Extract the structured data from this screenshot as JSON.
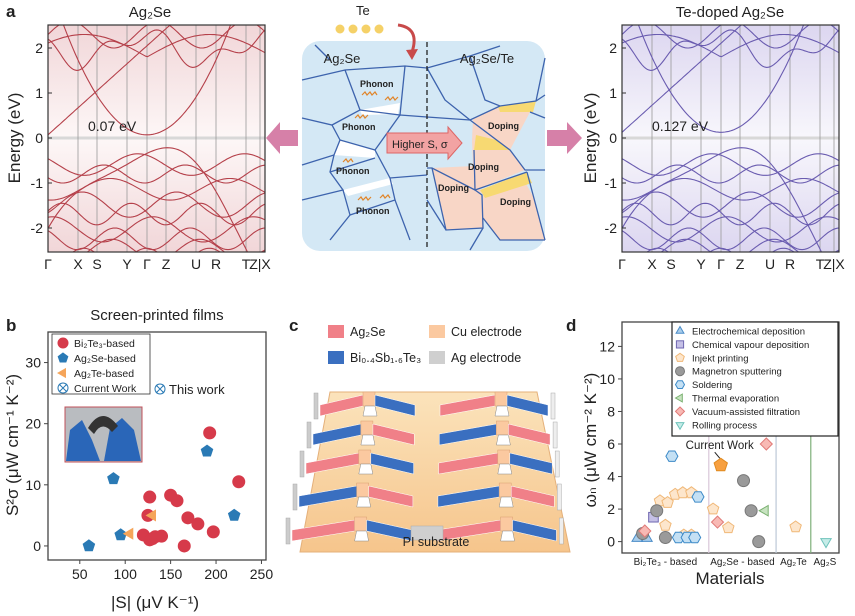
{
  "panel_labels": {
    "a": "a",
    "b": "b",
    "c": "c",
    "d": "d"
  },
  "panel_a": {
    "left_title": "Ag₂Se",
    "right_title": "Te-doped Ag₂Se",
    "ylabel": "Energy (eV)",
    "yticks": [
      "2",
      "1",
      "0",
      "-1",
      "-2"
    ],
    "kpoints": [
      "Γ",
      "X",
      "S",
      "Y",
      "Γ",
      "Z",
      "U",
      "R",
      "T",
      "Z|X"
    ],
    "left_gap": "0.07 eV",
    "right_gap": "0.127 eV",
    "left_color": "#b5404a",
    "right_color": "#6a5cb0",
    "schematic": {
      "te_label": "Te",
      "left_region": "Ag₂Se",
      "right_region": "Ag₂Se/Te",
      "phonon_labels": [
        "Phonon",
        "Phonon",
        "Phonon",
        "Phonon"
      ],
      "doping_labels": [
        "Doping",
        "Doping",
        "Doping",
        "Doping"
      ],
      "arrow_label": "Higher S, σ"
    }
  },
  "panel_c": {
    "legend": [
      "Ag₂Se",
      "Cu electrode",
      "Bi₀.₄Sb₁.₆Te₃",
      "Ag electrode"
    ],
    "legend_colors": [
      "#f08088",
      "#fbc9a0",
      "#3a6fc0",
      "#cfcfcf"
    ],
    "substrate_label": "PI substrate"
  },
  "chart_data": [
    {
      "id": "b",
      "type": "scatter",
      "title": "Screen-printed films",
      "xlabel": "|S| (μV K⁻¹)",
      "ylabel": "S²σ (μW cm⁻¹ K⁻²)",
      "xlim": [
        15,
        255
      ],
      "ylim": [
        -2.3,
        35
      ],
      "xticks": [
        50,
        100,
        150,
        200,
        250
      ],
      "yticks": [
        0,
        10,
        20,
        30
      ],
      "legend": [
        "Bi₂Te₃-based",
        "Ag₂Se-based",
        "Ag₂Te-based",
        "Current Work"
      ],
      "legend_placement": "top-left",
      "annotation": "This work",
      "series": [
        {
          "name": "Bi₂Te₃-based",
          "color": "#d63a4a",
          "marker": "circle",
          "points": [
            [
              127,
              8
            ],
            [
              125,
              5
            ],
            [
              120,
              1.8
            ],
            [
              127,
              1
            ],
            [
              130,
              1.2
            ],
            [
              133,
              1.5
            ],
            [
              140,
              1.6
            ],
            [
              150,
              8.3
            ],
            [
              157,
              7.4
            ],
            [
              169,
              4.6
            ],
            [
              180,
              3.6
            ],
            [
              197,
              2.3
            ],
            [
              165,
              0
            ],
            [
              193,
              18.5
            ],
            [
              225,
              10.5
            ]
          ]
        },
        {
          "name": "Ag₂Se-based",
          "color": "#2a7ab5",
          "marker": "pentagon",
          "points": [
            [
              60,
              0
            ],
            [
              87,
              11
            ],
            [
              95,
              1.8
            ],
            [
              190,
              15.5
            ],
            [
              220,
              5
            ]
          ]
        },
        {
          "name": "Ag₂Te-based",
          "color": "#f5a55a",
          "marker": "triangle-left",
          "points": [
            [
              130,
              5
            ],
            [
              105,
              2
            ]
          ]
        }
      ]
    },
    {
      "id": "d",
      "type": "scatter",
      "xlabel": "Materials",
      "ylabel": "ωₙ (μW cm⁻² K⁻²)",
      "ylim": [
        -0.7,
        13.5
      ],
      "yticks": [
        0,
        2,
        4,
        6,
        8,
        10,
        12
      ],
      "categories": [
        "Bi₂Te₃ - based",
        "Ag₂Se - based",
        "Ag₂Te",
        "Ag₂S"
      ],
      "category_spans": [
        [
          0,
          4
        ],
        [
          4,
          7.1
        ],
        [
          7.1,
          8.7
        ],
        [
          8.7,
          10
        ]
      ],
      "legend_placement": "top-right",
      "annotation": "Current Work",
      "current_work": {
        "x": 4.55,
        "y": 4.7,
        "color": "#f7a040"
      },
      "series": [
        {
          "name": "Electrochemical deposition",
          "marker": "triangle-up",
          "fill": "#a9cdea",
          "stroke": "#4a8cc8",
          "points": [
            [
              0.7,
              0.2
            ],
            [
              1.15,
              0.2
            ]
          ]
        },
        {
          "name": "Chemical vapour deposition",
          "marker": "square",
          "fill": "#c5c0e6",
          "stroke": "#6e66b0",
          "points": [
            [
              1.45,
              1.5
            ]
          ]
        },
        {
          "name": "Injekt printing",
          "marker": "pentagon",
          "fill": "#fde6cc",
          "stroke": "#f0b878",
          "points": [
            [
              1.75,
              2.5
            ],
            [
              2.1,
              2.4
            ],
            [
              2.45,
              2.9
            ],
            [
              2.8,
              3
            ],
            [
              3.2,
              3
            ],
            [
              2.0,
              1
            ],
            [
              2.85,
              0.4
            ],
            [
              3.2,
              0.4
            ],
            [
              4.2,
              2
            ],
            [
              4.9,
              0.85
            ],
            [
              8.0,
              0.9
            ]
          ]
        },
        {
          "name": "Magnetron sputtering",
          "marker": "circle",
          "fill": "#9a9a9a",
          "stroke": "#777777",
          "points": [
            [
              0.95,
              0.5
            ],
            [
              1.6,
              1.9
            ],
            [
              2.0,
              0.25
            ],
            [
              5.6,
              3.75
            ],
            [
              5.95,
              1.9
            ],
            [
              6.3,
              0
            ]
          ]
        },
        {
          "name": "Soldering",
          "marker": "hexagon",
          "fill": "#c4e0f4",
          "stroke": "#3d8ac8",
          "points": [
            [
              2.3,
              5.25
            ],
            [
              3.5,
              2.75
            ],
            [
              2.6,
              0.25
            ],
            [
              3.0,
              0.25
            ],
            [
              3.35,
              0.25
            ]
          ]
        },
        {
          "name": "Thermal evaporation",
          "marker": "triangle-left",
          "fill": "#c7e3c0",
          "stroke": "#7ab070",
          "points": [
            [
              6.6,
              1.9
            ]
          ]
        },
        {
          "name": "Vacuum-assisted filtration",
          "marker": "diamond",
          "fill": "#f8b9b4",
          "stroke": "#e07a78",
          "points": [
            [
              1.05,
              0.65
            ],
            [
              4.4,
              1.2
            ],
            [
              6.65,
              6
            ]
          ]
        },
        {
          "name": "Rolling process",
          "marker": "triangle-down",
          "fill": "#c6ece8",
          "stroke": "#6ec2bb",
          "points": [
            [
              9.4,
              0
            ]
          ]
        }
      ]
    }
  ]
}
